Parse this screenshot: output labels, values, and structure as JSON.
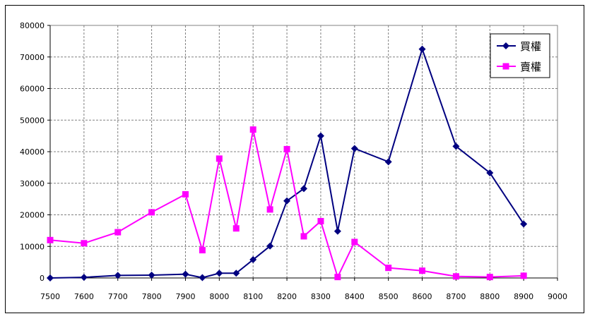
{
  "chart_data": {
    "type": "line",
    "title": "",
    "xlabel": "",
    "ylabel": "",
    "xlim": [
      7500,
      9000
    ],
    "ylim": [
      0,
      80000
    ],
    "x_ticks": [
      7500,
      7600,
      7700,
      7800,
      7900,
      8000,
      8100,
      8200,
      8300,
      8400,
      8500,
      8600,
      8700,
      8800,
      8900,
      9000
    ],
    "y_ticks": [
      0,
      10000,
      20000,
      30000,
      40000,
      50000,
      60000,
      70000,
      80000
    ],
    "grid": true,
    "legend_position": "top-right",
    "series": [
      {
        "name": "買權",
        "color": "#000080",
        "marker": "diamond",
        "points": [
          [
            7500,
            0
          ],
          [
            7600,
            200
          ],
          [
            7700,
            800
          ],
          [
            7800,
            900
          ],
          [
            7900,
            1200
          ],
          [
            7950,
            100
          ],
          [
            8000,
            1500
          ],
          [
            8050,
            1500
          ],
          [
            8100,
            5800
          ],
          [
            8150,
            10100
          ],
          [
            8200,
            24400
          ],
          [
            8250,
            28300
          ],
          [
            8300,
            45000
          ],
          [
            8350,
            14800
          ],
          [
            8400,
            41000
          ],
          [
            8500,
            36800
          ],
          [
            8600,
            72500
          ],
          [
            8700,
            41700
          ],
          [
            8800,
            33300
          ],
          [
            8900,
            17100
          ]
        ]
      },
      {
        "name": "賣權",
        "color": "#ff00ff",
        "marker": "square",
        "points": [
          [
            7500,
            12000
          ],
          [
            7600,
            11000
          ],
          [
            7700,
            14500
          ],
          [
            7800,
            20800
          ],
          [
            7900,
            26500
          ],
          [
            7950,
            8800
          ],
          [
            8000,
            37800
          ],
          [
            8050,
            15700
          ],
          [
            8100,
            47000
          ],
          [
            8150,
            21700
          ],
          [
            8200,
            40800
          ],
          [
            8250,
            13200
          ],
          [
            8300,
            18000
          ],
          [
            8350,
            300
          ],
          [
            8400,
            11400
          ],
          [
            8500,
            3200
          ],
          [
            8600,
            2300
          ],
          [
            8700,
            500
          ],
          [
            8800,
            300
          ],
          [
            8900,
            700
          ]
        ]
      }
    ]
  }
}
